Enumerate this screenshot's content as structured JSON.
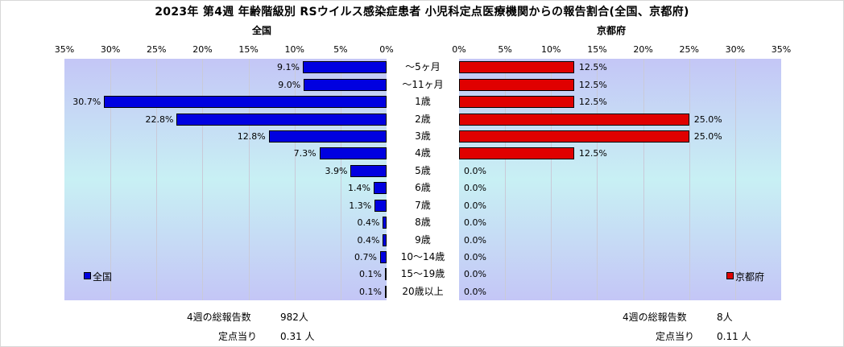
{
  "title": "2023年 第4週 年齢階級別 RSウイルス感染症患者 小児科定点医療機関からの報告割合(全国、京都府)",
  "left_panel_title": "全国",
  "right_panel_title": "京都府",
  "colors": {
    "national": "#0000e0",
    "kyoto": "#e00000"
  },
  "chart_data": [
    {
      "type": "bar",
      "orientation": "horizontal",
      "direction": "right-to-left",
      "title": "全国",
      "categories": [
        "～5ヶ月",
        "～11ヶ月",
        "1歳",
        "2歳",
        "3歳",
        "4歳",
        "5歳",
        "6歳",
        "7歳",
        "8歳",
        "9歳",
        "10～14歳",
        "15～19歳",
        "20歳以上"
      ],
      "series": [
        {
          "name": "全国",
          "values": [
            9.1,
            9.0,
            30.7,
            22.8,
            12.8,
            7.3,
            3.9,
            1.4,
            1.3,
            0.4,
            0.4,
            0.7,
            0.1,
            0.1
          ]
        }
      ],
      "x_ticks": [
        "35%",
        "30%",
        "25%",
        "20%",
        "15%",
        "10%",
        "5%",
        "0%"
      ],
      "xlim": [
        0,
        35
      ],
      "grid": true,
      "legend": "bottom-left"
    },
    {
      "type": "bar",
      "orientation": "horizontal",
      "direction": "left-to-right",
      "title": "京都府",
      "categories": [
        "～5ヶ月",
        "～11ヶ月",
        "1歳",
        "2歳",
        "3歳",
        "4歳",
        "5歳",
        "6歳",
        "7歳",
        "8歳",
        "9歳",
        "10～14歳",
        "15～19歳",
        "20歳以上"
      ],
      "series": [
        {
          "name": "京都府",
          "values": [
            12.5,
            12.5,
            12.5,
            25.0,
            25.0,
            12.5,
            0.0,
            0.0,
            0.0,
            0.0,
            0.0,
            0.0,
            0.0,
            0.0
          ]
        }
      ],
      "x_ticks": [
        "0%",
        "5%",
        "10%",
        "15%",
        "20%",
        "25%",
        "30%",
        "35%"
      ],
      "xlim": [
        0,
        35
      ],
      "grid": true,
      "legend": "bottom-right"
    }
  ],
  "footer": {
    "national": {
      "total_label": "4週の総報告数",
      "total_value": "982人",
      "per_label": "定点当り",
      "per_value": "0.31 人"
    },
    "kyoto": {
      "total_label": "4週の総報告数",
      "total_value": "8人",
      "per_label": "定点当り",
      "per_value": "0.11 人"
    }
  }
}
